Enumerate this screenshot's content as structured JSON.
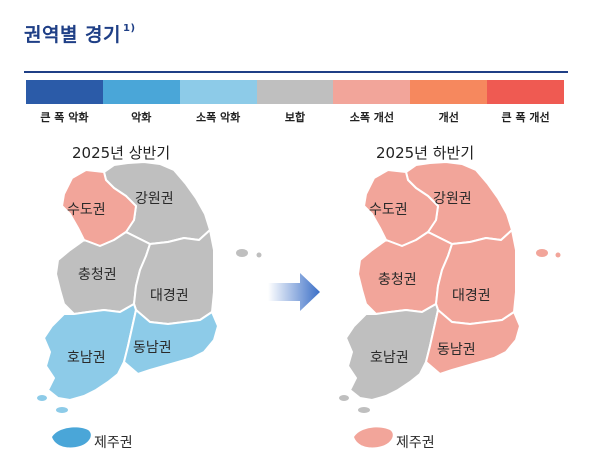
{
  "title": "권역별 경기",
  "title_footnote": "1)",
  "legend": [
    {
      "label": "큰 폭 악화",
      "color": "#2b5ba8"
    },
    {
      "label": "악화",
      "color": "#4aa6d8"
    },
    {
      "label": "소폭 악화",
      "color": "#8dcbe8"
    },
    {
      "label": "보합",
      "color": "#bfbfbf"
    },
    {
      "label": "소폭 개선",
      "color": "#f2a59a"
    },
    {
      "label": "개선",
      "color": "#f6885e"
    },
    {
      "label": "큰 폭 개선",
      "color": "#ef5a52"
    }
  ],
  "maps": [
    {
      "period": "2025년 상반기",
      "regions": {
        "sudo": {
          "name": "수도권",
          "status": "소폭 개선",
          "color": "#f2a59a"
        },
        "gangwon": {
          "name": "강원권",
          "status": "보합",
          "color": "#bfbfbf"
        },
        "chungcheong": {
          "name": "충청권",
          "status": "보합",
          "color": "#bfbfbf"
        },
        "daegyeong": {
          "name": "대경권",
          "status": "보합",
          "color": "#bfbfbf"
        },
        "honam": {
          "name": "호남권",
          "status": "소폭 악화",
          "color": "#8dcbe8"
        },
        "dongnam": {
          "name": "동남권",
          "status": "소폭 악화",
          "color": "#8dcbe8"
        },
        "jeju": {
          "name": "제주권",
          "status": "악화",
          "color": "#4aa6d8"
        }
      }
    },
    {
      "period": "2025년 하반기",
      "regions": {
        "sudo": {
          "name": "수도권",
          "status": "소폭 개선",
          "color": "#f2a59a"
        },
        "gangwon": {
          "name": "강원권",
          "status": "소폭 개선",
          "color": "#f2a59a"
        },
        "chungcheong": {
          "name": "충청권",
          "status": "소폭 개선",
          "color": "#f2a59a"
        },
        "daegyeong": {
          "name": "대경권",
          "status": "소폭 개선",
          "color": "#f2a59a"
        },
        "honam": {
          "name": "호남권",
          "status": "보합",
          "color": "#bfbfbf"
        },
        "dongnam": {
          "name": "동남권",
          "status": "소폭 개선",
          "color": "#f2a59a"
        },
        "jeju": {
          "name": "제주권",
          "status": "소폭 개선",
          "color": "#f2a59a"
        }
      }
    }
  ],
  "arrow_color": "#3b6fc7"
}
